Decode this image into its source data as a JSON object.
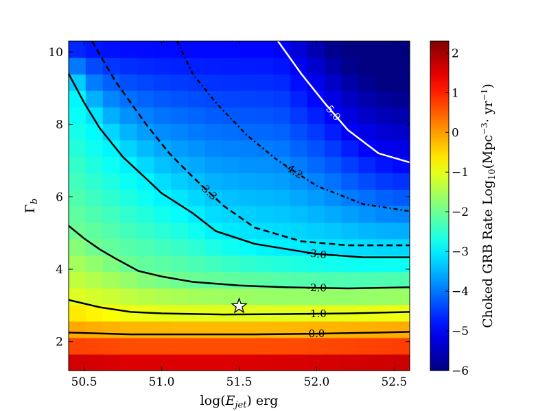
{
  "chart_data": {
    "type": "heatmap",
    "title": "",
    "xlabel": "log(E_jet) erg",
    "ylabel": "Γ_b",
    "colorbar_label": "Choked GRB Rate Log10(Mpc^-3 · yr^-1)",
    "xlim": [
      50.4,
      52.6
    ],
    "ylim": [
      1.2,
      10.3
    ],
    "colorbar_range": [
      -6,
      2.3
    ],
    "colormap": "jet",
    "x_ticks": [
      "50.5",
      "51.0",
      "51.5",
      "52.0",
      "52.5"
    ],
    "y_ticks": [
      "2",
      "4",
      "6",
      "8",
      "10"
    ],
    "colorbar_ticks": [
      "−6",
      "−5",
      "−4",
      "−3",
      "−2",
      "−1",
      "0",
      "1",
      "2"
    ],
    "contours": [
      {
        "label": "0.0",
        "value": 0.0,
        "style": "solid",
        "color": "#000000",
        "points": [
          [
            50.4,
            2.25
          ],
          [
            50.8,
            2.2
          ],
          [
            51.2,
            2.2
          ],
          [
            51.6,
            2.2
          ],
          [
            52.0,
            2.22
          ],
          [
            52.4,
            2.25
          ],
          [
            52.6,
            2.27
          ]
        ]
      },
      {
        "label": "-1.0",
        "value": -1.0,
        "style": "solid",
        "color": "#000000",
        "points": [
          [
            50.4,
            3.15
          ],
          [
            50.6,
            2.95
          ],
          [
            50.8,
            2.82
          ],
          [
            51.0,
            2.78
          ],
          [
            51.4,
            2.75
          ],
          [
            51.8,
            2.76
          ],
          [
            52.2,
            2.78
          ],
          [
            52.6,
            2.82
          ]
        ]
      },
      {
        "label": "-2.0",
        "value": -2.0,
        "style": "solid",
        "color": "#000000",
        "points": [
          [
            50.4,
            5.2
          ],
          [
            50.5,
            4.85
          ],
          [
            50.6,
            4.55
          ],
          [
            50.7,
            4.3
          ],
          [
            50.85,
            3.95
          ],
          [
            51.0,
            3.8
          ],
          [
            51.2,
            3.65
          ],
          [
            51.5,
            3.55
          ],
          [
            51.8,
            3.5
          ],
          [
            52.2,
            3.47
          ],
          [
            52.6,
            3.5
          ]
        ]
      },
      {
        "label": "-3.0",
        "value": -3.0,
        "style": "solid",
        "color": "#000000",
        "points": [
          [
            50.4,
            9.4
          ],
          [
            50.5,
            8.6
          ],
          [
            50.6,
            7.9
          ],
          [
            50.75,
            7.1
          ],
          [
            50.9,
            6.5
          ],
          [
            51.0,
            6.1
          ],
          [
            51.2,
            5.55
          ],
          [
            51.35,
            5.05
          ],
          [
            51.6,
            4.7
          ],
          [
            52.0,
            4.42
          ],
          [
            52.3,
            4.33
          ],
          [
            52.6,
            4.33
          ]
        ]
      },
      {
        "label": "-3.3",
        "value": -3.3,
        "style": "dashed",
        "color": "#000000",
        "points": [
          [
            50.55,
            10.3
          ],
          [
            50.7,
            9.2
          ],
          [
            50.9,
            8.0
          ],
          [
            51.05,
            7.2
          ],
          [
            51.2,
            6.55
          ],
          [
            51.4,
            5.75
          ],
          [
            51.6,
            5.15
          ],
          [
            51.9,
            4.77
          ],
          [
            52.2,
            4.66
          ],
          [
            52.6,
            4.66
          ]
        ]
      },
      {
        "label": "-4.2",
        "value": -4.2,
        "style": "dashdot",
        "color": "#000000",
        "points": [
          [
            51.1,
            10.3
          ],
          [
            51.2,
            9.4
          ],
          [
            51.35,
            8.6
          ],
          [
            51.55,
            7.7
          ],
          [
            51.75,
            7.0
          ],
          [
            52.0,
            6.3
          ],
          [
            52.3,
            5.8
          ],
          [
            52.6,
            5.6
          ]
        ]
      },
      {
        "label": "-5.0",
        "value": -5.0,
        "style": "solid",
        "color": "#ffffff",
        "points": [
          [
            51.75,
            10.3
          ],
          [
            51.9,
            9.4
          ],
          [
            52.05,
            8.6
          ],
          [
            52.2,
            7.85
          ],
          [
            52.4,
            7.2
          ],
          [
            52.6,
            6.95
          ]
        ]
      }
    ],
    "marker": {
      "symbol": "star",
      "x": 51.5,
      "y": 2.98
    }
  }
}
